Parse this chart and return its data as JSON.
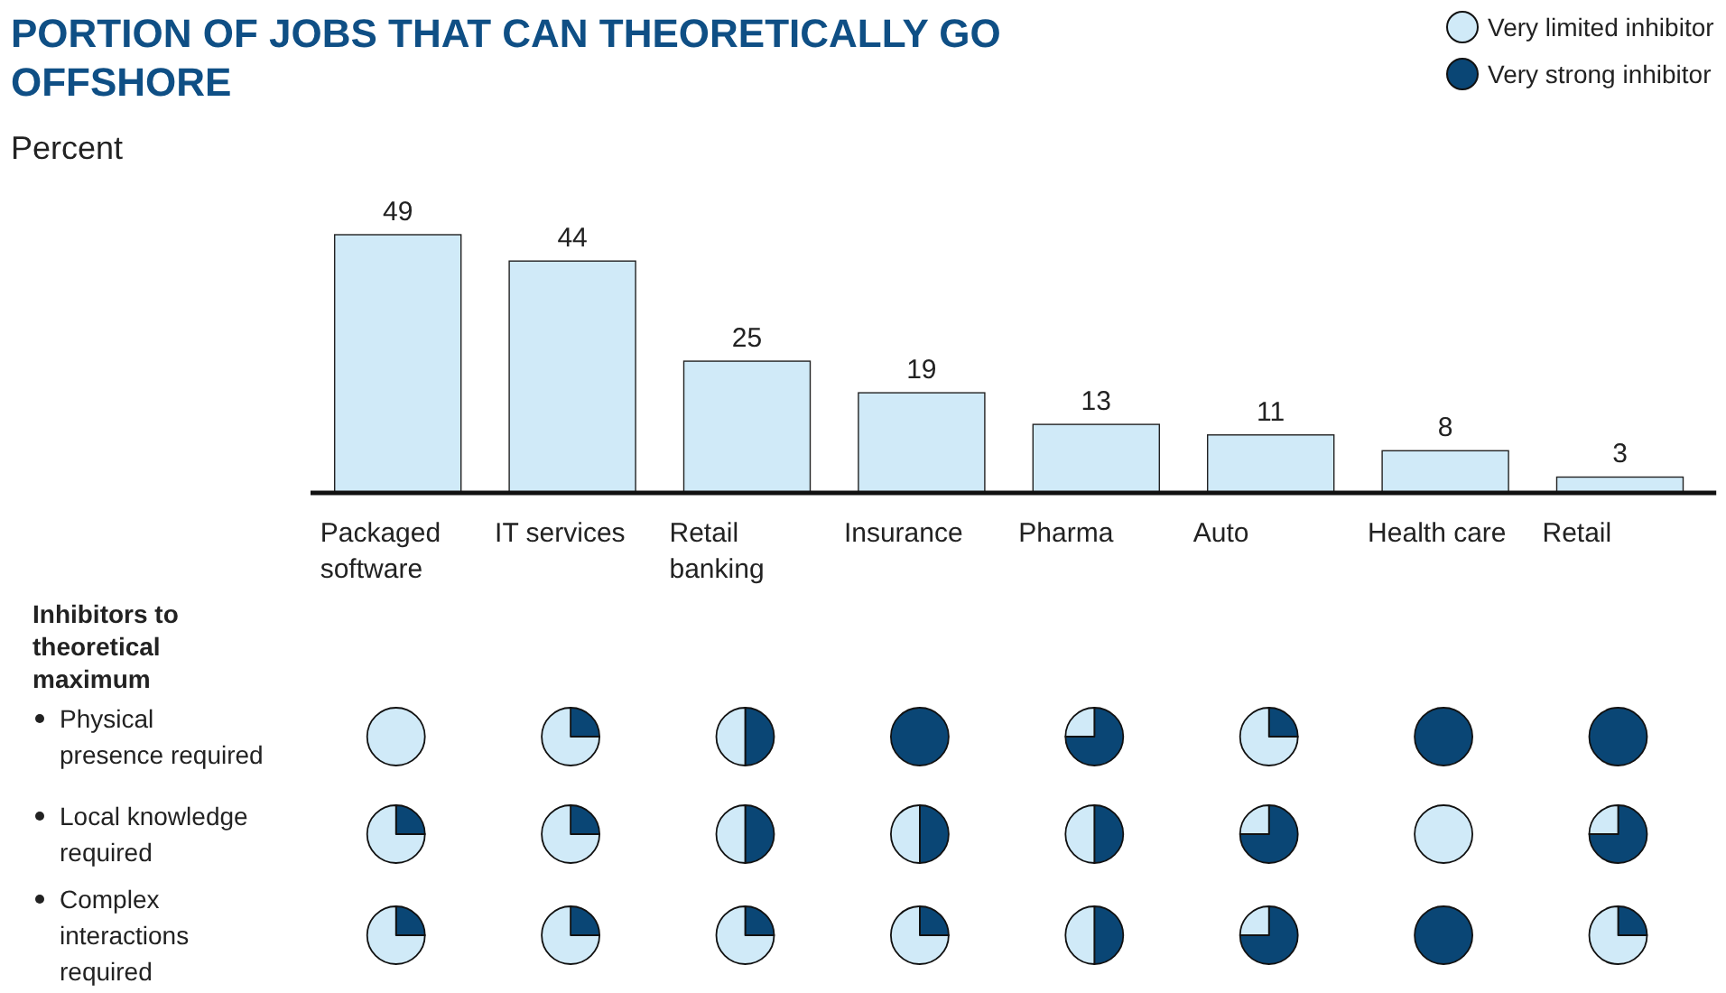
{
  "chart_data": [
    {
      "type": "bar",
      "title": "PORTION OF JOBS THAT CAN THEORETICALLY GO OFFSHORE",
      "subtitle": "Percent",
      "categories": [
        "Packaged software",
        "IT services",
        "Retail banking",
        "Insurance",
        "Pharma",
        "Auto",
        "Health care",
        "Retail"
      ],
      "values": [
        49,
        44,
        25,
        19,
        13,
        11,
        8,
        3
      ],
      "color": "#d0eaf8",
      "data_labels": true
    },
    {
      "type": "other",
      "title": "Inhibitors to theoretical maximum",
      "y_categories": [
        "Physical\npresence required",
        "Local knowledge\nrequired",
        "Complex\ninteractions\nrequired"
      ],
      "annotations": [
        "Very limited inhibitor",
        "Very strong inhibitor"
      ],
      "colors": [
        "#d0eaf8",
        "#0a4675"
      ]
    },
    {
      "type": "pie",
      "categories": [
        null
      ],
      "values": [
        100
      ],
      "colors": [
        "#d0eaf8"
      ]
    },
    {
      "type": "pie",
      "categories": [
        null,
        null
      ],
      "values": [
        25,
        75
      ],
      "colors": [
        "#0a4675",
        "#d0eaf8"
      ]
    },
    {
      "type": "pie",
      "categories": [
        null,
        null
      ],
      "values": [
        50,
        50
      ],
      "colors": [
        "#0a4675",
        "#d0eaf8"
      ]
    },
    {
      "type": "pie",
      "categories": [
        null
      ],
      "values": [
        100
      ],
      "colors": [
        "#0a4675"
      ]
    },
    {
      "type": "pie",
      "categories": [
        null,
        null
      ],
      "values": [
        75,
        25
      ],
      "colors": [
        "#0a4675",
        "#d0eaf8"
      ]
    },
    {
      "type": "pie",
      "categories": [
        null,
        null
      ],
      "values": [
        25,
        75
      ],
      "colors": [
        "#0a4675",
        "#d0eaf8"
      ]
    },
    {
      "type": "pie",
      "categories": [
        null
      ],
      "values": [
        100
      ],
      "colors": [
        "#0a4675"
      ]
    },
    {
      "type": "pie",
      "categories": [
        null
      ],
      "values": [
        100
      ],
      "colors": [
        "#0a4675"
      ]
    },
    {
      "type": "pie",
      "categories": [
        null,
        null
      ],
      "values": [
        25,
        75
      ],
      "colors": [
        "#0a4675",
        "#d0eaf8"
      ]
    },
    {
      "type": "pie",
      "categories": [
        null,
        null
      ],
      "values": [
        25,
        75
      ],
      "colors": [
        "#0a4675",
        "#d0eaf8"
      ]
    },
    {
      "type": "pie",
      "categories": [
        null,
        null
      ],
      "values": [
        50,
        50
      ],
      "colors": [
        "#0a4675",
        "#d0eaf8"
      ]
    },
    {
      "type": "pie",
      "categories": [
        null,
        null
      ],
      "values": [
        50,
        50
      ],
      "colors": [
        "#0a4675",
        "#d0eaf8"
      ]
    },
    {
      "type": "pie",
      "categories": [
        null,
        null
      ],
      "values": [
        50,
        50
      ],
      "colors": [
        "#0a4675",
        "#d0eaf8"
      ]
    },
    {
      "type": "pie",
      "categories": [
        null,
        null
      ],
      "values": [
        75,
        25
      ],
      "colors": [
        "#0a4675",
        "#d0eaf8"
      ]
    },
    {
      "type": "pie",
      "categories": [
        null
      ],
      "values": [
        100
      ],
      "colors": [
        "#d0eaf8"
      ]
    },
    {
      "type": "pie",
      "categories": [
        null,
        null
      ],
      "values": [
        75,
        25
      ],
      "colors": [
        "#0a4675",
        "#d0eaf8"
      ]
    },
    {
      "type": "pie",
      "categories": [
        null,
        null
      ],
      "values": [
        25,
        75
      ],
      "colors": [
        "#0a4675",
        "#d0eaf8"
      ]
    },
    {
      "type": "pie",
      "categories": [
        null,
        null
      ],
      "values": [
        25,
        75
      ],
      "colors": [
        "#0a4675",
        "#d0eaf8"
      ]
    },
    {
      "type": "pie",
      "categories": [
        null,
        null
      ],
      "values": [
        25,
        75
      ],
      "colors": [
        "#0a4675",
        "#d0eaf8"
      ]
    },
    {
      "type": "pie",
      "categories": [
        null,
        null
      ],
      "values": [
        25,
        75
      ],
      "colors": [
        "#0a4675",
        "#d0eaf8"
      ]
    },
    {
      "type": "pie",
      "categories": [
        null,
        null
      ],
      "values": [
        50,
        50
      ],
      "colors": [
        "#0a4675",
        "#d0eaf8"
      ]
    },
    {
      "type": "pie",
      "categories": [
        null,
        null
      ],
      "values": [
        75,
        25
      ],
      "colors": [
        "#0a4675",
        "#d0eaf8"
      ]
    },
    {
      "type": "pie",
      "categories": [
        null
      ],
      "values": [
        100
      ],
      "colors": [
        "#0a4675"
      ]
    },
    {
      "type": "pie",
      "categories": [
        null,
        null
      ],
      "values": [
        25,
        75
      ],
      "colors": [
        "#0a4675",
        "#d0eaf8"
      ]
    }
  ]
}
